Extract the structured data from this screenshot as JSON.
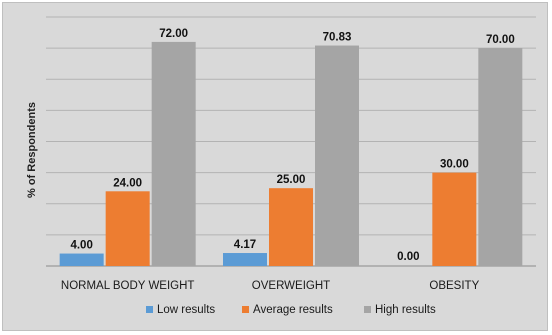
{
  "chart_data": {
    "type": "bar",
    "ylabel": "% of Respondents",
    "xlabel": "",
    "categories": [
      "NORMAL BODY WEIGHT",
      "OVERWEIGHT",
      "OBESITY"
    ],
    "series": [
      {
        "name": "Low results",
        "values": [
          4.0,
          4.17,
          0.0
        ],
        "labels": [
          "4.00",
          "4.17",
          "0.00"
        ],
        "color": "#5b9bd5"
      },
      {
        "name": "Average results",
        "values": [
          24.0,
          25.0,
          30.0
        ],
        "labels": [
          "24.00",
          "25.00",
          "30.00"
        ],
        "color": "#ed7d31"
      },
      {
        "name": "High results",
        "values": [
          72.0,
          70.83,
          70.0
        ],
        "labels": [
          "72.00",
          "70.83",
          "70.00"
        ],
        "color": "#a5a5a5"
      }
    ],
    "ylim": [
      0,
      80
    ],
    "grid": true,
    "legend_position": "bottom"
  }
}
